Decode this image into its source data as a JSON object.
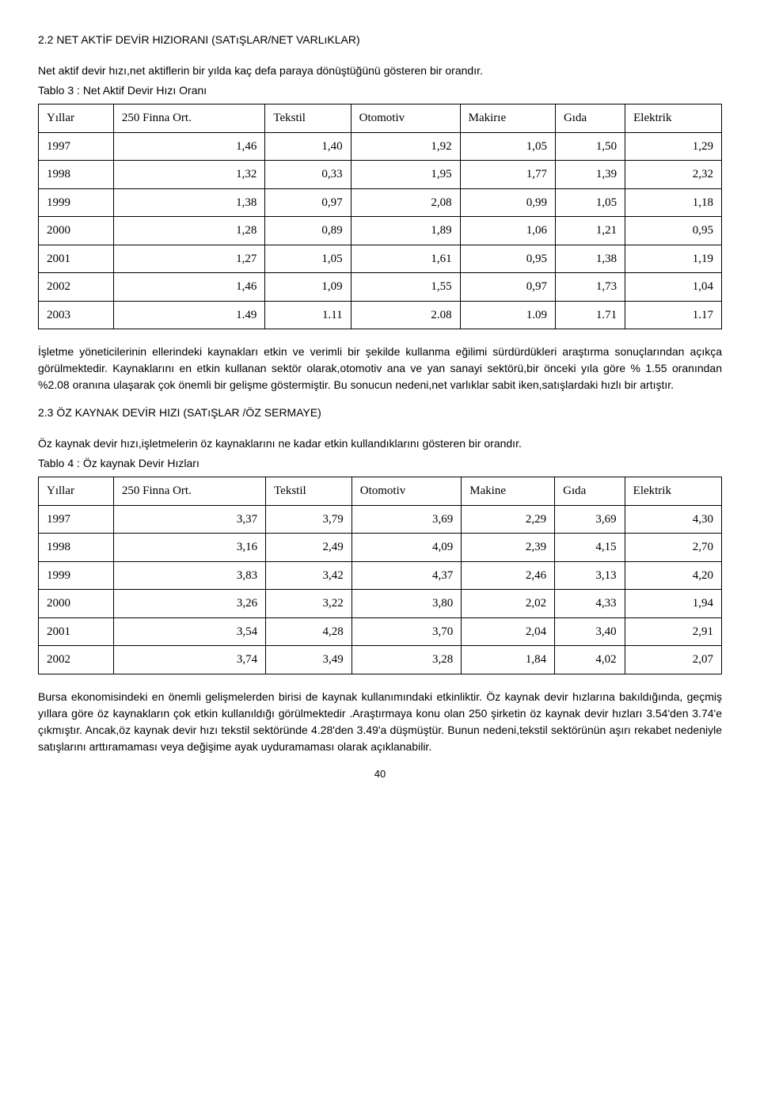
{
  "section1": {
    "heading": "2.2 NET AKTİF DEVİR HIZIORANI (SATıŞLAR/NET VARLıKLAR)",
    "intro": "Net aktif devir hızı,net aktiflerin bir yılda kaç defa paraya dönüştüğünü gösteren bir orandır.",
    "tableCaption": "Tablo 3 : Net Aktif Devir Hızı Oranı",
    "headers": [
      "Yıllar",
      "250 Finna Ort.",
      "Tekstil",
      "Otomotiv",
      "Makirıe",
      "Gıda",
      "Elektrik"
    ],
    "rows": [
      [
        "1997",
        "1,46",
        "1,40",
        "1,92",
        "1,05",
        "1,50",
        "1,29"
      ],
      [
        "1998",
        "1,32",
        "0,33",
        "1,95",
        "1,77",
        "1,39",
        "2,32"
      ],
      [
        "1999",
        "1,38",
        "0,97",
        "2,08",
        "0,99",
        "1,05",
        "1,18"
      ],
      [
        "2000",
        "1,28",
        "0,89",
        "1,89",
        "1,06",
        "1,21",
        "0,95"
      ],
      [
        "2001",
        "1,27",
        "1,05",
        "1,61",
        "0,95",
        "1,38",
        "1,19"
      ],
      [
        "2002",
        "1,46",
        "1,09",
        "1,55",
        "0,97",
        "1,73",
        "1,04"
      ],
      [
        "2003",
        "1.49",
        "1.11",
        "2.08",
        "1.09",
        "1.71",
        "1.17"
      ]
    ],
    "paragraph": "İşletme yöneticilerinin ellerindeki kaynakları etkin ve verimli bir şekilde kullanma eğilimi sürdürdükleri araştırma sonuçlarından açıkça görülmektedir. Kaynaklarını en etkin kullanan sektör olarak,otomotiv ana ve yan sanayi sektörü,bir önceki yıla göre % 1.55 oranından %2.08 oranına ulaşarak çok önemli bir gelişme göstermiştir. Bu sonucun nedeni,net varlıklar sabit iken,satışlardaki hızlı bir artıştır."
  },
  "section2": {
    "heading": "2.3 ÖZ KAYNAK DEVİR HIZI (SATıŞLAR /ÖZ SERMAYE)",
    "intro": "Öz kaynak devir hızı,işletmelerin öz kaynaklarını ne kadar etkin kullandıklarını gösteren bir orandır.",
    "tableCaption": "Tablo 4 : Öz kaynak Devir Hızları",
    "headers": [
      "Yıllar",
      "250 Finna Ort.",
      "Tekstil",
      "Otomotiv",
      "Makine",
      "Gıda",
      "Elektrik"
    ],
    "rows": [
      [
        "1997",
        "3,37",
        "3,79",
        "3,69",
        "2,29",
        "3,69",
        "4,30"
      ],
      [
        "1998",
        "3,16",
        "2,49",
        "4,09",
        "2,39",
        "4,15",
        "2,70"
      ],
      [
        "1999",
        "3,83",
        "3,42",
        "4,37",
        "2,46",
        "3,13",
        "4,20"
      ],
      [
        "2000",
        "3,26",
        "3,22",
        "3,80",
        "2,02",
        "4,33",
        "1,94"
      ],
      [
        "2001",
        "3,54",
        "4,28",
        "3,70",
        "2,04",
        "3,40",
        "2,91"
      ],
      [
        "2002",
        "3,74",
        "3,49",
        "3,28",
        "1,84",
        "4,02",
        "2,07"
      ]
    ],
    "paragraph": "Bursa ekonomisindeki en önemli gelişmelerden birisi de kaynak kullanımındaki etkinliktir. Öz kaynak devir hızlarına bakıldığında, geçmiş yıllara göre öz kaynakların çok etkin kullanıldığı görülmektedir .Araştırmaya konu olan 250 şirketin öz kaynak devir hızları 3.54'den 3.74'e çıkmıştır. Ancak,öz kaynak devir hızı tekstil sektöründe 4.28'den 3.49'a düşmüştür. Bunun nedeni,tekstil sektörünün aşırı rekabet nedeniyle satışlarını arttıramaması veya değişime ayak uyduramaması olarak açıklanabilir."
  },
  "pageNumber": "40"
}
